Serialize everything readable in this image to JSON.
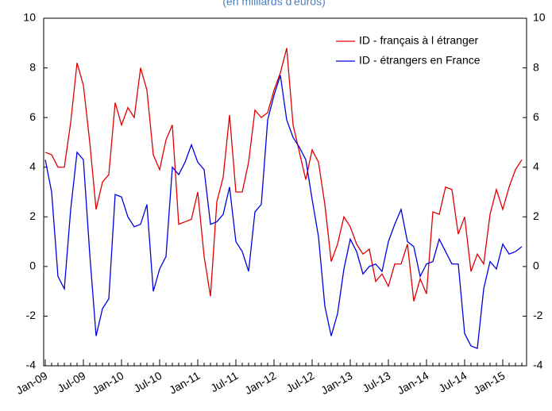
{
  "chart_data": {
    "type": "line",
    "subtitle": "(en milliards d'euros)",
    "categories": [
      "Jan-09",
      null,
      null,
      null,
      null,
      null,
      "Jul-09",
      null,
      null,
      null,
      null,
      null,
      "Jan-10",
      null,
      null,
      null,
      null,
      null,
      "Jul-10",
      null,
      null,
      null,
      null,
      null,
      "Jan-11",
      null,
      null,
      null,
      null,
      null,
      "Jul-11",
      null,
      null,
      null,
      null,
      null,
      "Jan-12",
      null,
      null,
      null,
      null,
      null,
      "Jul-12",
      null,
      null,
      null,
      null,
      null,
      "Jan-13",
      null,
      null,
      null,
      null,
      null,
      "Jul-13",
      null,
      null,
      null,
      null,
      null,
      "Jan-14",
      null,
      null,
      null,
      null,
      null,
      "Jul-14",
      null,
      null,
      null,
      null,
      null,
      "Jan-15",
      null,
      null,
      null
    ],
    "series": [
      {
        "name": "ID - français à l étranger",
        "color": "#e00000",
        "values": [
          4.6,
          4.5,
          4.0,
          4.0,
          5.8,
          8.2,
          7.3,
          5.0,
          2.3,
          3.4,
          3.7,
          6.6,
          5.7,
          6.4,
          6.0,
          8.0,
          7.1,
          4.5,
          3.9,
          5.1,
          5.7,
          1.7,
          1.8,
          1.9,
          3.0,
          0.4,
          -1.2,
          2.6,
          3.6,
          6.1,
          3.0,
          3.0,
          4.2,
          6.3,
          6.0,
          6.2,
          7.1,
          7.8,
          8.8,
          5.7,
          4.6,
          3.5,
          4.7,
          4.2,
          2.5,
          0.2,
          0.9,
          2.0,
          1.6,
          0.9,
          0.5,
          0.7,
          -0.6,
          -0.3,
          -0.8,
          0.1,
          0.1,
          0.9,
          -1.4,
          -0.5,
          -1.1,
          2.2,
          2.1,
          3.2,
          3.1,
          1.3,
          2.0,
          -0.2,
          0.5,
          0.1,
          2.1,
          3.1,
          2.3,
          3.2,
          3.9,
          4.3
        ]
      },
      {
        "name": "ID - étrangers en France",
        "color": "#0000e0",
        "values": [
          4.3,
          3.0,
          -0.4,
          -0.9,
          2.3,
          4.6,
          4.3,
          0.5,
          -2.8,
          -1.7,
          -1.3,
          2.9,
          2.8,
          2.0,
          1.6,
          1.7,
          2.5,
          -1.0,
          -0.1,
          0.4,
          4.0,
          3.7,
          4.2,
          4.9,
          4.2,
          3.9,
          1.7,
          1.8,
          2.1,
          3.2,
          1.0,
          0.6,
          -0.2,
          2.2,
          2.5,
          5.9,
          6.9,
          7.7,
          5.9,
          5.2,
          4.8,
          4.3,
          2.7,
          1.2,
          -1.6,
          -2.8,
          -1.9,
          -0.1,
          1.1,
          0.6,
          -0.3,
          0.0,
          0.1,
          -0.2,
          1.0,
          1.7,
          2.3,
          1.0,
          0.8,
          -0.4,
          0.1,
          0.2,
          1.1,
          0.6,
          0.1,
          0.1,
          -2.7,
          -3.2,
          -3.3,
          -0.9,
          0.2,
          -0.1,
          0.9,
          0.5,
          0.6,
          0.8
        ]
      }
    ],
    "ylim": [
      -4,
      10
    ],
    "yticks": [
      -4,
      -2,
      0,
      2,
      4,
      6,
      8,
      10
    ],
    "y2lim": [
      -4,
      10
    ],
    "y2ticks": [
      -4,
      -2,
      0,
      2,
      4,
      6,
      8,
      10
    ],
    "legend": "top-right",
    "grid": false
  }
}
